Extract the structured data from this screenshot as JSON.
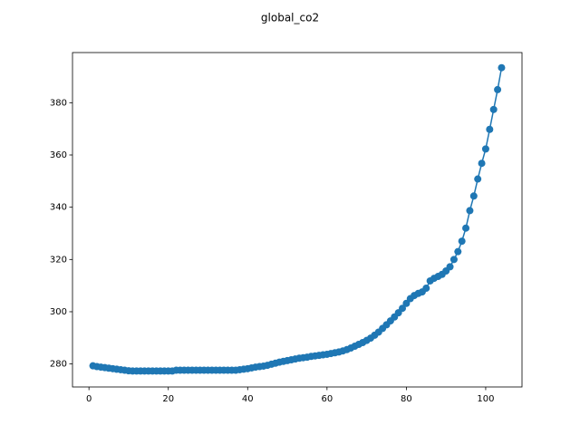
{
  "chart_data": {
    "type": "line",
    "title": "global_co2",
    "x": [
      1,
      2,
      3,
      4,
      5,
      6,
      7,
      8,
      9,
      10,
      11,
      12,
      13,
      14,
      15,
      16,
      17,
      18,
      19,
      20,
      21,
      22,
      23,
      24,
      25,
      26,
      27,
      28,
      29,
      30,
      31,
      32,
      33,
      34,
      35,
      36,
      37,
      38,
      39,
      40,
      41,
      42,
      43,
      44,
      45,
      46,
      47,
      48,
      49,
      50,
      51,
      52,
      53,
      54,
      55,
      56,
      57,
      58,
      59,
      60,
      61,
      62,
      63,
      64,
      65,
      66,
      67,
      68,
      69,
      70,
      71,
      72,
      73,
      74,
      75,
      76,
      77,
      78,
      79,
      80,
      81,
      82,
      83,
      84,
      85,
      86,
      87,
      88,
      89,
      90,
      91,
      92,
      93,
      94,
      95,
      96,
      97,
      98,
      99,
      100,
      101,
      102,
      103,
      104
    ],
    "series": [
      {
        "name": "global_co2",
        "color": "#1f77b4",
        "values": [
          279.3,
          279.0,
          278.8,
          278.6,
          278.4,
          278.2,
          278.0,
          277.8,
          277.6,
          277.4,
          277.3,
          277.3,
          277.3,
          277.3,
          277.3,
          277.3,
          277.3,
          277.3,
          277.3,
          277.3,
          277.3,
          277.6,
          277.6,
          277.6,
          277.6,
          277.6,
          277.6,
          277.6,
          277.6,
          277.6,
          277.6,
          277.6,
          277.6,
          277.6,
          277.6,
          277.6,
          277.6,
          277.8,
          278.0,
          278.2,
          278.5,
          278.8,
          279.0,
          279.2,
          279.5,
          279.9,
          280.3,
          280.7,
          281.0,
          281.3,
          281.6,
          281.9,
          282.2,
          282.4,
          282.6,
          282.9,
          283.1,
          283.3,
          283.5,
          283.7,
          284.0,
          284.3,
          284.6,
          285.0,
          285.5,
          286.1,
          286.8,
          287.5,
          288.2,
          289.0,
          289.9,
          291.0,
          292.2,
          293.6,
          295.0,
          296.5,
          298.0,
          299.6,
          301.3,
          303.2,
          305.0,
          306.2,
          307.0,
          307.6,
          309.0,
          311.8,
          312.8,
          313.5,
          314.3,
          315.6,
          317.2,
          320.0,
          323.0,
          327.0,
          332.0,
          338.7,
          344.3,
          350.8,
          356.8,
          362.3,
          369.8,
          377.4,
          385.0,
          393.4
        ]
      }
    ],
    "xlim": [
      -4.15,
      109.15
    ],
    "xticks": [
      0,
      20,
      40,
      60,
      80,
      100
    ],
    "ylim": [
      271.2,
      399.2
    ],
    "yticks": [
      280,
      300,
      320,
      340,
      360,
      380
    ]
  }
}
